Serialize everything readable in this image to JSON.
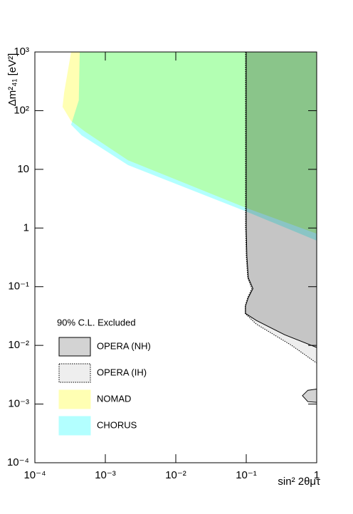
{
  "chart_data": {
    "type": "contour",
    "x_label": "sin² 2θμτ",
    "y_label": "Δm²₄₁ [eV²]",
    "log_x": true,
    "log_y": true,
    "xlim": [
      0.0001,
      1
    ],
    "ylim": [
      0.0001,
      1000
    ],
    "xticks": [
      {
        "value": 0.0001,
        "label": "10⁻⁴"
      },
      {
        "value": 0.001,
        "label": "10⁻³"
      },
      {
        "value": 0.01,
        "label": "10⁻²"
      },
      {
        "value": 0.1,
        "label": "10⁻¹"
      },
      1
    ],
    "yticks": [
      {
        "value": 0.0001,
        "label": "10⁻⁴"
      },
      {
        "value": 0.001,
        "label": "10⁻³"
      },
      {
        "value": 0.01,
        "label": "10⁻²"
      },
      {
        "value": 0.1,
        "label": "10⁻¹"
      },
      1,
      10,
      {
        "value": 100,
        "label": "10²"
      },
      {
        "value": 1000,
        "label": "10³"
      }
    ],
    "legend_title": "90% C.L. Excluded",
    "legend_position": "lower-left",
    "series": [
      {
        "name": "OPERA (NH)",
        "color": "#d3d3d3",
        "line": "solid",
        "x": [
          0.1,
          0.1,
          0.102,
          0.107,
          0.1245,
          0.107,
          0.0977,
          0.0977,
          0.1387,
          0.35,
          1,
          1,
          null,
          0.627,
          0.75,
          1,
          1,
          0.75
        ],
        "values": [
          1000,
          1.0,
          0.33,
          0.142,
          0.093,
          0.065,
          0.047,
          0.035,
          0.0266,
          0.0152,
          0.0092,
          1000,
          null,
          0.00139,
          0.00172,
          0.0018,
          0.00107,
          0.0011
        ]
      },
      {
        "name": "OPERA (IH)",
        "color": "#eeeeee",
        "line": "dotted",
        "x": [
          0.0977,
          0.0977,
          0.1,
          0.105,
          0.12,
          0.105,
          0.0965,
          0.0965,
          0.1387,
          0.44,
          1,
          1
        ],
        "values": [
          1000,
          1.0,
          0.33,
          0.142,
          0.093,
          0.065,
          0.047,
          0.035,
          0.0231,
          0.01,
          0.005,
          1000
        ]
      },
      {
        "name": "NOMAD",
        "color": "#ffffb3",
        "line": "none",
        "x": [
          0.000327,
          0.00026,
          0.000247,
          0.000327,
          0.00052,
          0.0021,
          0.1,
          1,
          1
        ],
        "values": [
          1000,
          203,
          116,
          66.5,
          43.7,
          14.3,
          2.2,
          0.8,
          1000
        ]
      },
      {
        "name": "CHORUS",
        "color": "#b3ffff",
        "line": "none",
        "x": [
          0.000433,
          0.00042,
          0.000327,
          0.00046,
          0.0021,
          0.1,
          1,
          1
        ],
        "values": [
          1000,
          150,
          57.8,
          38,
          11.8,
          1.91,
          0.61,
          1000
        ]
      }
    ]
  }
}
